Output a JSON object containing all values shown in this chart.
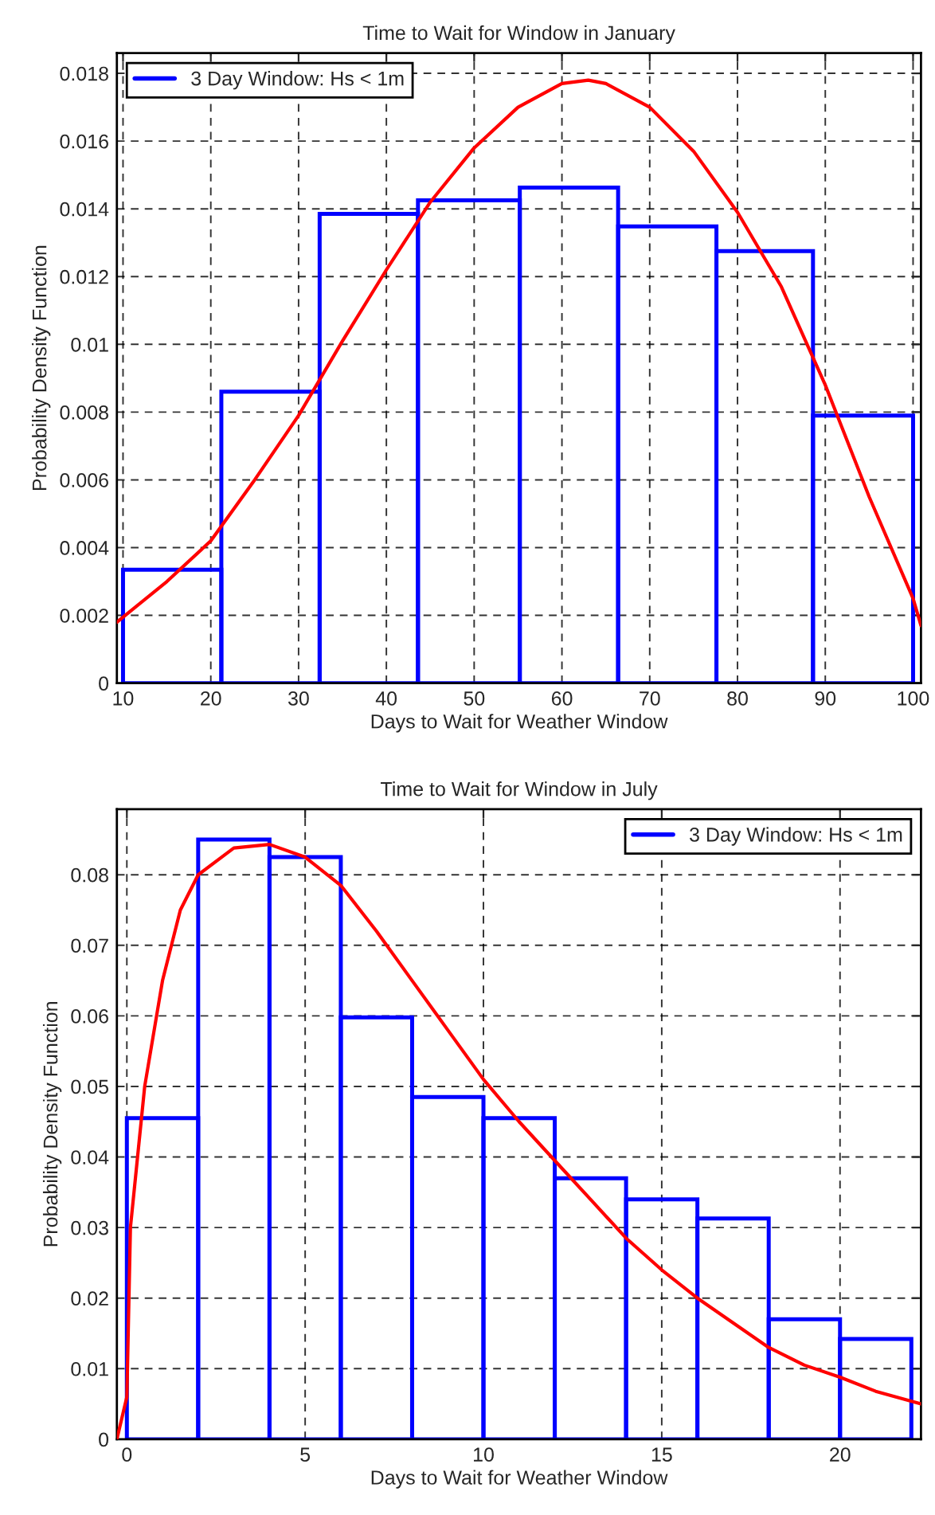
{
  "chart_data": [
    {
      "type": "histogram",
      "title": "Time to Wait for Window in January",
      "xlabel": "Days to Wait for Weather Window",
      "ylabel": "Probability Density Function",
      "xlim": [
        9.3,
        100.9
      ],
      "xticks": [
        10,
        20,
        30,
        40,
        50,
        60,
        70,
        80,
        90,
        {
          "value": 100,
          "label": "100"
        }
      ],
      "ylim": [
        0,
        0.0186
      ],
      "yticks": [
        0,
        0.002,
        0.004,
        0.006,
        0.008,
        0.01,
        0.012,
        0.014,
        0.016,
        0.018
      ],
      "grid": true,
      "legend": "top left",
      "series": [
        {
          "name": "3 Day Window: Hs < 1m",
          "color": "#0000ff",
          "bins": [
            10,
            21.2,
            32.4,
            43.6,
            55.2,
            66.4,
            77.6,
            88.6,
            100
          ],
          "values": [
            0.00335,
            0.0086,
            0.01385,
            0.01425,
            0.01463,
            0.01348,
            0.01275,
            0.0079
          ]
        },
        {
          "type": "line",
          "color": "#ff0000",
          "x": [
            9.3,
            15,
            20,
            25,
            30,
            35,
            40,
            45,
            50,
            55,
            60,
            63,
            65,
            70,
            75,
            80,
            85,
            90,
            95,
            100,
            100.9
          ],
          "values": [
            0.0018,
            0.003,
            0.0042,
            0.006,
            0.0079,
            0.0101,
            0.0122,
            0.0142,
            0.0158,
            0.017,
            0.0177,
            0.0178,
            0.0177,
            0.017,
            0.0157,
            0.0139,
            0.0117,
            0.0088,
            0.0055,
            0.0025,
            0.0017
          ]
        }
      ]
    },
    {
      "type": "histogram",
      "title": "Time to Wait for Window in July",
      "xlabel": "Days to Wait for Weather Window",
      "ylabel": "Probability Density Function",
      "xlim": [
        -0.28,
        22.27
      ],
      "xticks": [
        0,
        5,
        10,
        15,
        20
      ],
      "ylim": [
        0,
        0.0893
      ],
      "yticks": [
        0,
        0.01,
        0.02,
        0.03,
        0.04,
        0.05,
        0.06,
        0.07,
        0.08
      ],
      "grid": true,
      "legend": "top right",
      "series": [
        {
          "name": "3 Day Window: Hs < 1m",
          "color": "#0000ff",
          "bins": [
            0,
            2,
            4,
            6,
            8,
            10,
            12,
            14,
            16,
            18,
            20,
            22
          ],
          "values": [
            0.0455,
            0.085,
            0.0825,
            0.0598,
            0.0485,
            0.0455,
            0.037,
            0.034,
            0.0313,
            0.017,
            0.0142
          ]
        },
        {
          "type": "line",
          "color": "#ff0000",
          "x": [
            -0.28,
            0,
            0.1,
            0.5,
            1,
            1.5,
            2,
            3,
            4,
            5,
            6,
            7,
            8,
            9,
            10,
            11,
            12,
            13,
            14,
            15,
            16,
            17,
            18,
            19,
            20,
            21,
            22.27
          ],
          "values": [
            0,
            0.006,
            0.03,
            0.05,
            0.065,
            0.075,
            0.08,
            0.0838,
            0.0843,
            0.0825,
            0.0785,
            0.072,
            0.065,
            0.058,
            0.051,
            0.045,
            0.0395,
            0.034,
            0.0285,
            0.024,
            0.02,
            0.0165,
            0.013,
            0.0105,
            0.0088,
            0.0068,
            0.005
          ]
        }
      ]
    }
  ]
}
